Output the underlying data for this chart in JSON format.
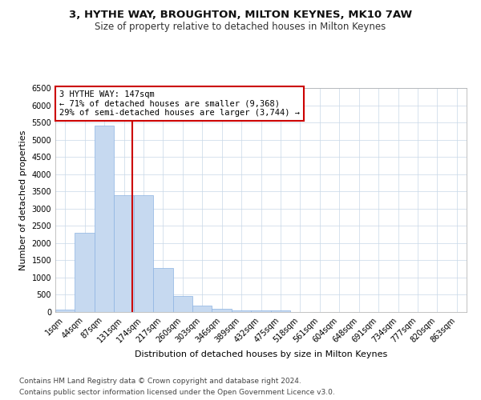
{
  "title1": "3, HYTHE WAY, BROUGHTON, MILTON KEYNES, MK10 7AW",
  "title2": "Size of property relative to detached houses in Milton Keynes",
  "xlabel": "Distribution of detached houses by size in Milton Keynes",
  "ylabel": "Number of detached properties",
  "bin_labels": [
    "1sqm",
    "44sqm",
    "87sqm",
    "131sqm",
    "174sqm",
    "217sqm",
    "260sqm",
    "303sqm",
    "346sqm",
    "389sqm",
    "432sqm",
    "475sqm",
    "518sqm",
    "561sqm",
    "604sqm",
    "648sqm",
    "691sqm",
    "734sqm",
    "777sqm",
    "820sqm",
    "863sqm"
  ],
  "bar_heights": [
    75,
    2300,
    5400,
    3400,
    3400,
    1280,
    470,
    185,
    85,
    55,
    45,
    35,
    0,
    0,
    0,
    0,
    0,
    0,
    0,
    0,
    0
  ],
  "bar_color": "#c6d9f0",
  "bar_edgecolor": "#8db3e2",
  "vline_x": 3.42,
  "vline_color": "#cc0000",
  "annotation_text": "3 HYTHE WAY: 147sqm\n← 71% of detached houses are smaller (9,368)\n29% of semi-detached houses are larger (3,744) →",
  "annotation_box_color": "#ffffff",
  "annotation_box_edgecolor": "#cc0000",
  "ylim": [
    0,
    6500
  ],
  "yticks": [
    0,
    500,
    1000,
    1500,
    2000,
    2500,
    3000,
    3500,
    4000,
    4500,
    5000,
    5500,
    6000,
    6500
  ],
  "footer_line1": "Contains HM Land Registry data © Crown copyright and database right 2024.",
  "footer_line2": "Contains public sector information licensed under the Open Government Licence v3.0.",
  "bg_color": "#ffffff",
  "grid_color": "#c8d8e8",
  "title1_fontsize": 9.5,
  "title2_fontsize": 8.5,
  "axis_label_fontsize": 8,
  "tick_fontsize": 7,
  "annot_fontsize": 7.5,
  "footer_fontsize": 6.5
}
